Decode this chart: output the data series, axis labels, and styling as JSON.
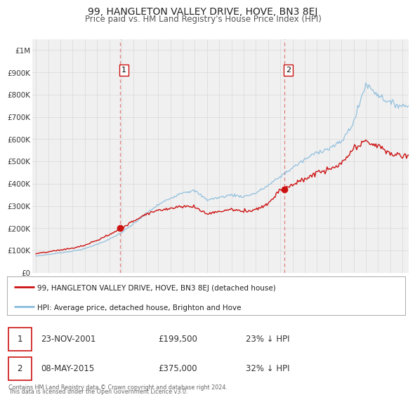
{
  "title": "99, HANGLETON VALLEY DRIVE, HOVE, BN3 8EJ",
  "subtitle": "Price paid vs. HM Land Registry's House Price Index (HPI)",
  "title_fontsize": 10,
  "subtitle_fontsize": 8.5,
  "bg_color": "#f5f5f5",
  "plot_bg_color": "#f0f0f0",
  "grid_color": "#d8d8d8",
  "hpi_line_color": "#88bbdd",
  "price_line_color": "#cc1111",
  "marker_color": "#cc1111",
  "vline_color": "#e08080",
  "ylim": [
    0,
    1050000
  ],
  "yticks": [
    0,
    100000,
    200000,
    300000,
    400000,
    500000,
    600000,
    700000,
    800000,
    900000,
    1000000
  ],
  "ytick_labels": [
    "£0",
    "£100K",
    "£200K",
    "£300K",
    "£400K",
    "£500K",
    "£600K",
    "£700K",
    "£800K",
    "£900K",
    "£1M"
  ],
  "xlim_start": 1994.7,
  "xlim_end": 2025.5,
  "xticks": [
    1995,
    1996,
    1997,
    1998,
    1999,
    2000,
    2001,
    2002,
    2003,
    2004,
    2005,
    2006,
    2007,
    2008,
    2009,
    2010,
    2011,
    2012,
    2013,
    2014,
    2015,
    2016,
    2017,
    2018,
    2019,
    2020,
    2021,
    2022,
    2023,
    2024,
    2025
  ],
  "sale1_x": 2001.9,
  "sale1_y": 199500,
  "sale2_x": 2015.35,
  "sale2_y": 375000,
  "sale1_date": "23-NOV-2001",
  "sale1_price": "£199,500",
  "sale1_hpi": "23% ↓ HPI",
  "sale2_date": "08-MAY-2015",
  "sale2_price": "£375,000",
  "sale2_hpi": "32% ↓ HPI",
  "legend_property": "99, HANGLETON VALLEY DRIVE, HOVE, BN3 8EJ (detached house)",
  "legend_hpi": "HPI: Average price, detached house, Brighton and Hove",
  "footer1": "Contains HM Land Registry data © Crown copyright and database right 2024.",
  "footer2": "This data is licensed under the Open Government Licence v3.0.",
  "hpi_base": [
    75000,
    82000,
    90000,
    97000,
    108000,
    128000,
    150000,
    180000,
    220000,
    265000,
    305000,
    335000,
    362000,
    368000,
    328000,
    338000,
    350000,
    342000,
    358000,
    392000,
    432000,
    472000,
    508000,
    542000,
    558000,
    588000,
    675000,
    848000,
    800000,
    762000,
    750000
  ],
  "prop_base": [
    85500,
    93480,
    102600,
    110580,
    123120,
    145920,
    171000,
    199500,
    233200,
    265000,
    280000,
    290000,
    300000,
    295000,
    265000,
    275000,
    285000,
    275000,
    285000,
    310000,
    375000,
    395000,
    420000,
    450000,
    462000,
    488000,
    555000,
    590000,
    570000,
    535000,
    525000
  ]
}
